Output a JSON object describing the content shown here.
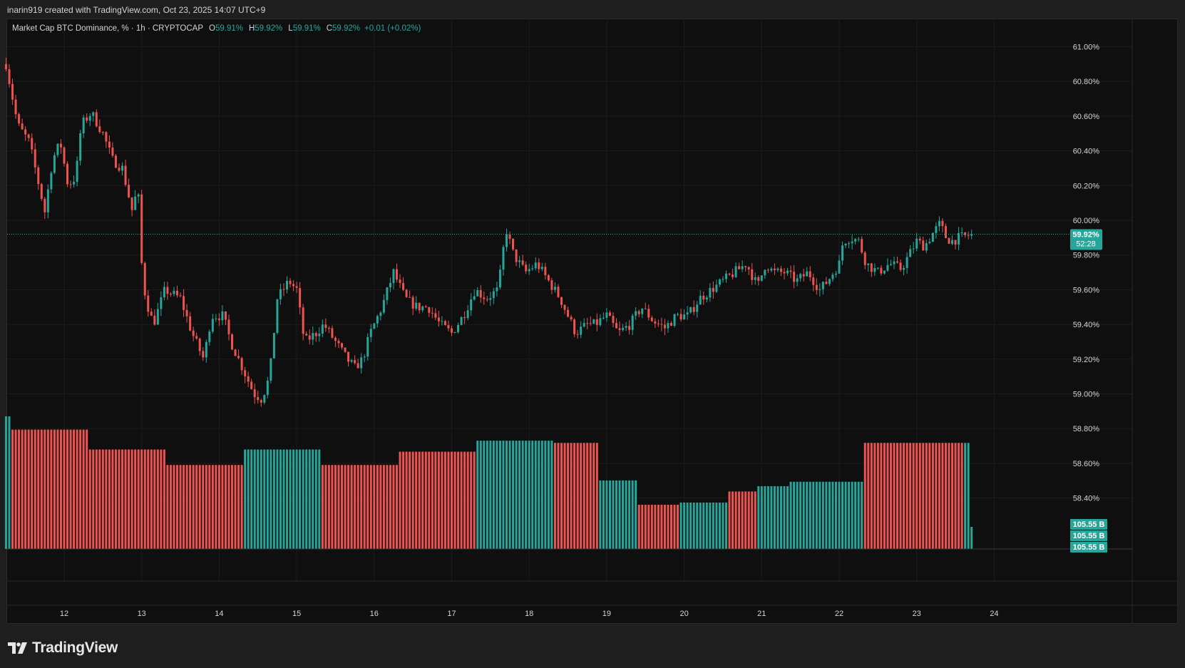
{
  "caption": "inarin919 created with TradingView.com, Oct 23, 2025 14:07 UTC+9",
  "legend": {
    "symbol": "Market Cap BTC Dominance, % · 1h · CRYPTOCAP",
    "o_label": "O",
    "o_value": "59.91%",
    "h_label": "H",
    "h_value": "59.92%",
    "l_label": "L",
    "l_value": "59.91%",
    "c_label": "C",
    "c_value": "59.92%",
    "change": "+0.01 (+0.02%)"
  },
  "price_tag": {
    "value": "59.92%",
    "countdown": "52:28"
  },
  "volume_tags": [
    "105.55 B",
    "105.55 B",
    "105.55 B"
  ],
  "brand": "TradingView",
  "colors": {
    "up": "#26a69a",
    "down": "#ef5350",
    "background": "#0f0f0f",
    "grid": "#1c1c1c",
    "text": "#d1d4dc"
  },
  "chart_data": {
    "type": "candlestick",
    "title": "Market Cap BTC Dominance, %",
    "interval": "1h",
    "source": "CRYPTOCAP",
    "yaxis": {
      "ticks": [
        "61.00%",
        "60.80%",
        "60.60%",
        "60.40%",
        "60.20%",
        "60.00%",
        "59.80%",
        "59.60%",
        "59.40%",
        "59.20%",
        "59.00%",
        "58.80%",
        "58.60%",
        "58.40%"
      ],
      "tick_values": [
        61.0,
        60.8,
        60.6,
        60.4,
        60.2,
        60.0,
        59.8,
        59.6,
        59.4,
        59.2,
        59.0,
        58.8,
        58.6,
        58.4
      ],
      "ylim": [
        58.31,
        61.04
      ]
    },
    "xaxis": {
      "ticks": [
        "12",
        "13",
        "14",
        "15",
        "16",
        "17",
        "18",
        "19",
        "20",
        "21",
        "22",
        "23",
        "24"
      ],
      "tick_days": [
        12,
        13,
        14,
        15,
        16,
        17,
        18,
        19,
        20,
        21,
        22,
        23,
        24
      ]
    },
    "start_day": 11.25,
    "end_day": 23.72,
    "last_price": 59.92,
    "close_path": [
      [
        11.25,
        60.9
      ],
      [
        11.4,
        60.55
      ],
      [
        11.55,
        60.45
      ],
      [
        11.75,
        60.05
      ],
      [
        11.85,
        60.35
      ],
      [
        11.95,
        60.45
      ],
      [
        12.05,
        60.2
      ],
      [
        12.15,
        60.25
      ],
      [
        12.22,
        60.55
      ],
      [
        12.35,
        60.62
      ],
      [
        12.5,
        60.5
      ],
      [
        12.62,
        60.35
      ],
      [
        12.75,
        60.3
      ],
      [
        12.88,
        60.05
      ],
      [
        12.95,
        60.2
      ],
      [
        13.0,
        59.75
      ],
      [
        13.05,
        59.55
      ],
      [
        13.15,
        59.4
      ],
      [
        13.3,
        59.6
      ],
      [
        13.5,
        59.55
      ],
      [
        13.65,
        59.35
      ],
      [
        13.8,
        59.2
      ],
      [
        13.9,
        59.45
      ],
      [
        14.05,
        59.45
      ],
      [
        14.15,
        59.3
      ],
      [
        14.25,
        59.2
      ],
      [
        14.35,
        59.1
      ],
      [
        14.45,
        59.0
      ],
      [
        14.55,
        58.97
      ],
      [
        14.65,
        59.1
      ],
      [
        14.75,
        59.55
      ],
      [
        14.9,
        59.65
      ],
      [
        15.0,
        59.6
      ],
      [
        15.1,
        59.3
      ],
      [
        15.25,
        59.35
      ],
      [
        15.35,
        59.4
      ],
      [
        15.5,
        59.3
      ],
      [
        15.65,
        59.2
      ],
      [
        15.75,
        59.15
      ],
      [
        15.85,
        59.2
      ],
      [
        15.95,
        59.35
      ],
      [
        16.1,
        59.5
      ],
      [
        16.25,
        59.7
      ],
      [
        16.4,
        59.55
      ],
      [
        16.55,
        59.5
      ],
      [
        16.7,
        59.5
      ],
      [
        16.85,
        59.4
      ],
      [
        17.0,
        59.35
      ],
      [
        17.15,
        59.45
      ],
      [
        17.3,
        59.6
      ],
      [
        17.45,
        59.55
      ],
      [
        17.6,
        59.6
      ],
      [
        17.7,
        59.95
      ],
      [
        17.8,
        59.8
      ],
      [
        17.95,
        59.7
      ],
      [
        18.1,
        59.75
      ],
      [
        18.25,
        59.65
      ],
      [
        18.4,
        59.55
      ],
      [
        18.5,
        59.45
      ],
      [
        18.6,
        59.35
      ],
      [
        18.75,
        59.4
      ],
      [
        18.85,
        59.4
      ],
      [
        19.0,
        59.45
      ],
      [
        19.15,
        59.35
      ],
      [
        19.3,
        59.4
      ],
      [
        19.45,
        59.5
      ],
      [
        19.6,
        59.42
      ],
      [
        19.75,
        59.38
      ],
      [
        19.9,
        59.45
      ],
      [
        20.05,
        59.45
      ],
      [
        20.2,
        59.55
      ],
      [
        20.35,
        59.6
      ],
      [
        20.5,
        59.65
      ],
      [
        20.65,
        59.7
      ],
      [
        20.8,
        59.75
      ],
      [
        20.95,
        59.62
      ],
      [
        21.05,
        59.75
      ],
      [
        21.15,
        59.7
      ],
      [
        21.3,
        59.7
      ],
      [
        21.45,
        59.65
      ],
      [
        21.6,
        59.7
      ],
      [
        21.75,
        59.6
      ],
      [
        21.85,
        59.65
      ],
      [
        22.0,
        59.75
      ],
      [
        22.05,
        59.88
      ],
      [
        22.15,
        59.9
      ],
      [
        22.25,
        59.88
      ],
      [
        22.35,
        59.75
      ],
      [
        22.5,
        59.7
      ],
      [
        22.65,
        59.75
      ],
      [
        22.8,
        59.72
      ],
      [
        22.9,
        59.8
      ],
      [
        23.0,
        59.88
      ],
      [
        23.1,
        59.85
      ],
      [
        23.2,
        59.92
      ],
      [
        23.3,
        59.98
      ],
      [
        23.38,
        59.9
      ],
      [
        23.45,
        59.88
      ],
      [
        23.55,
        59.9
      ],
      [
        23.65,
        59.91
      ],
      [
        23.72,
        59.92
      ]
    ],
    "volume_steps": [
      [
        11.25,
        3.0,
        "up"
      ],
      [
        11.3,
        2.7,
        "down"
      ],
      [
        12.33,
        2.25,
        "down"
      ],
      [
        13.33,
        1.9,
        "down"
      ],
      [
        14.33,
        2.25,
        "up"
      ],
      [
        15.33,
        1.9,
        "down"
      ],
      [
        16.33,
        2.2,
        "down"
      ],
      [
        17.33,
        2.45,
        "up"
      ],
      [
        18.33,
        2.4,
        "down"
      ],
      [
        18.9,
        1.55,
        "up"
      ],
      [
        19.4,
        1.0,
        "down"
      ],
      [
        19.95,
        1.05,
        "up"
      ],
      [
        20.55,
        1.3,
        "down"
      ],
      [
        20.92,
        1.42,
        "up"
      ],
      [
        21.35,
        1.52,
        "up"
      ],
      [
        22.35,
        1.52,
        "up"
      ],
      [
        22.32,
        2.4,
        "down"
      ],
      [
        23.6,
        2.4,
        "up"
      ],
      [
        23.7,
        0.5,
        "up"
      ]
    ]
  }
}
